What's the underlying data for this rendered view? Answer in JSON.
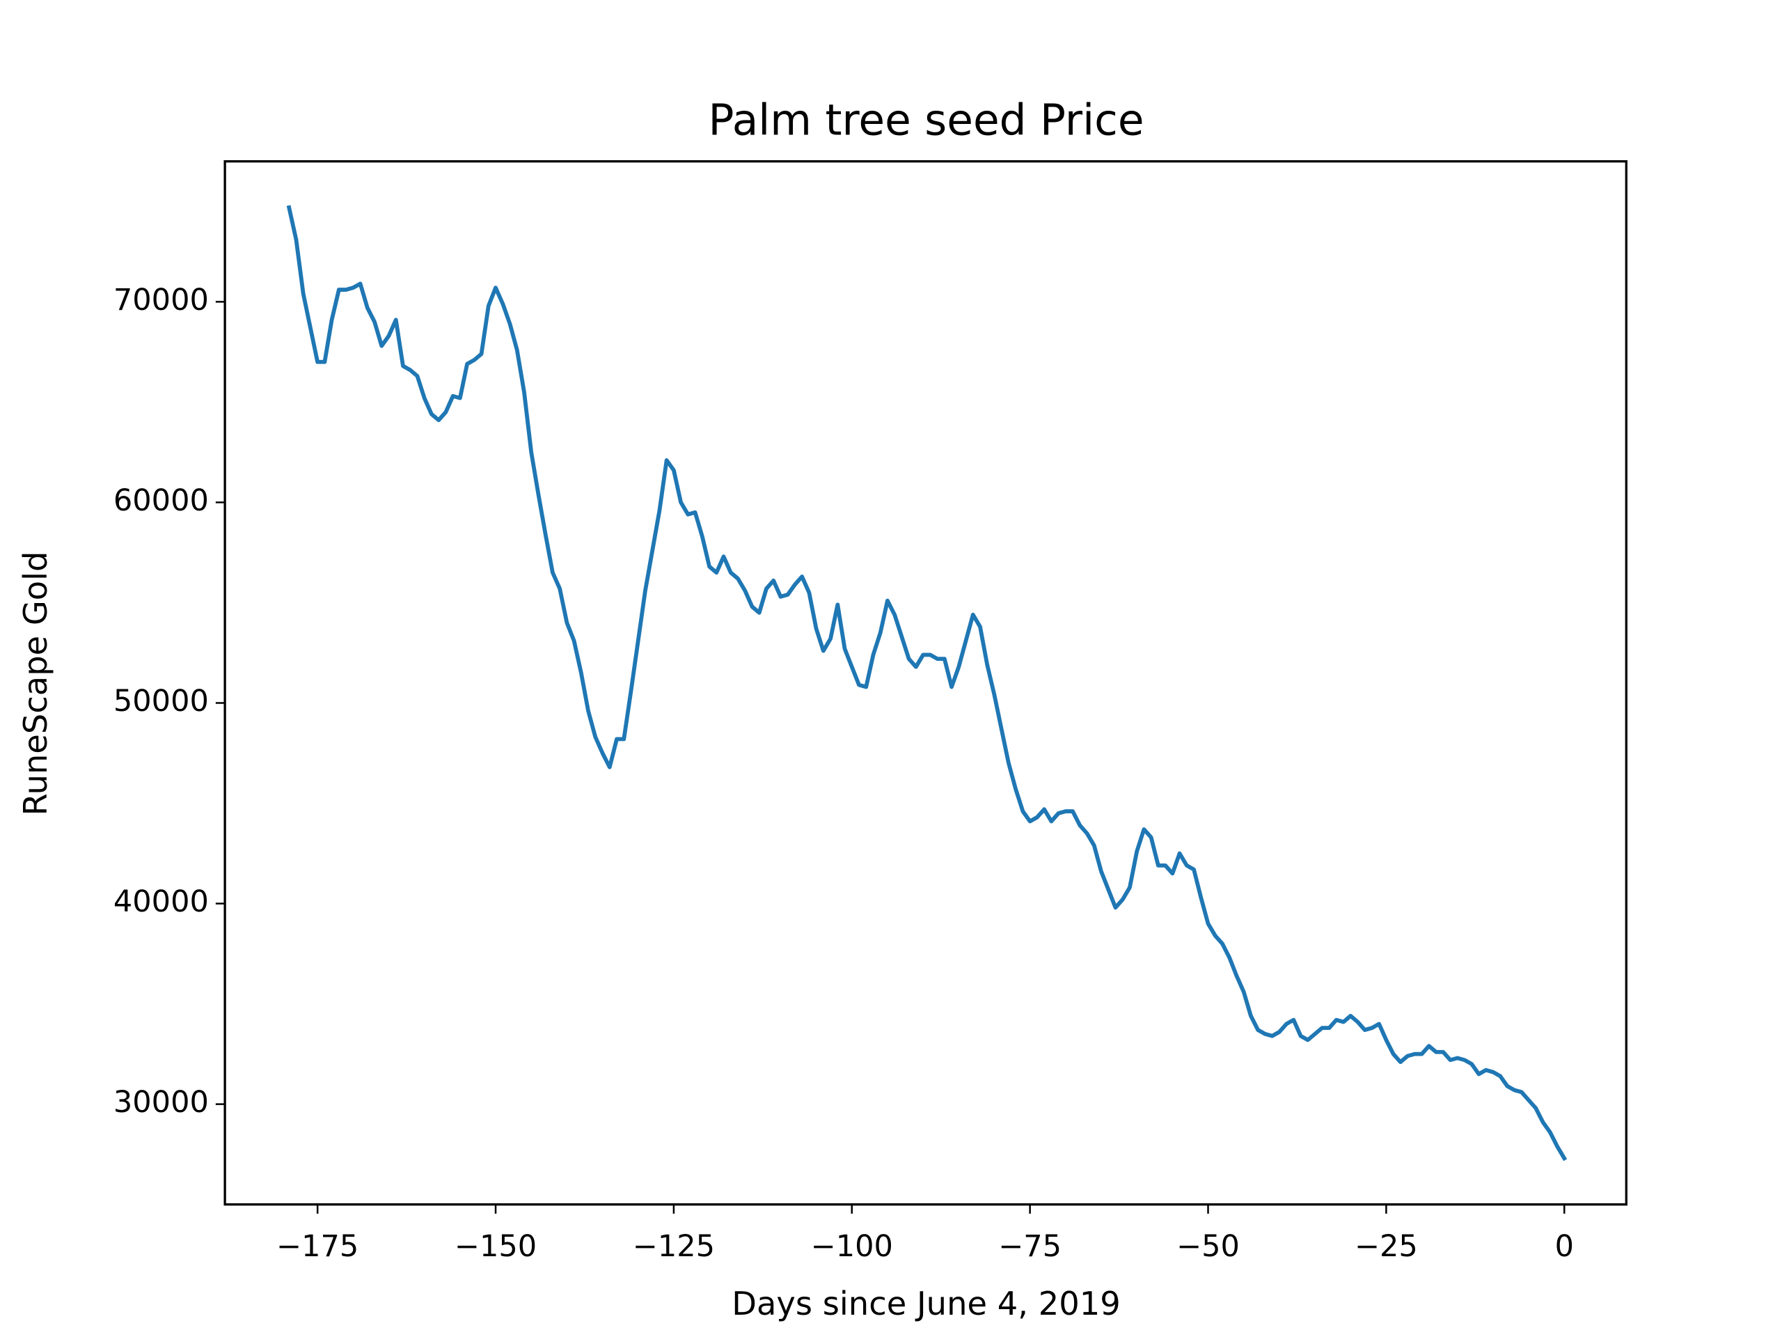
{
  "chart_data": {
    "type": "line",
    "title": "Palm tree seed Price",
    "xlabel": "Days since June 4, 2019",
    "ylabel": "RuneScape Gold",
    "color": "#1f77b4",
    "x": [
      -179,
      -178,
      -177,
      -176,
      -175,
      -174,
      -173,
      -172,
      -171,
      -170,
      -169,
      -168,
      -167,
      -166,
      -165,
      -164,
      -163,
      -162,
      -161,
      -160,
      -159,
      -158,
      -157,
      -156,
      -155,
      -154,
      -153,
      -152,
      -151,
      -150,
      -149,
      -148,
      -147,
      -146,
      -145,
      -144,
      -143,
      -142,
      -141,
      -140,
      -139,
      -138,
      -137,
      -136,
      -135,
      -134,
      -133,
      -132,
      -131,
      -130,
      -129,
      -128,
      -127,
      -126,
      -125,
      -124,
      -123,
      -122,
      -121,
      -120,
      -119,
      -118,
      -117,
      -116,
      -115,
      -114,
      -113,
      -112,
      -111,
      -110,
      -109,
      -108,
      -107,
      -106,
      -105,
      -104,
      -103,
      -102,
      -101,
      -100,
      -99,
      -98,
      -97,
      -96,
      -95,
      -94,
      -93,
      -92,
      -91,
      -90,
      -89,
      -88,
      -87,
      -86,
      -85,
      -84,
      -83,
      -82,
      -81,
      -80,
      -79,
      -78,
      -77,
      -76,
      -75,
      -74,
      -73,
      -72,
      -71,
      -70,
      -69,
      -68,
      -67,
      -66,
      -65,
      -64,
      -63,
      -62,
      -61,
      -60,
      -59,
      -58,
      -57,
      -56,
      -55,
      -54,
      -53,
      -52,
      -51,
      -50,
      -49,
      -48,
      -47,
      -46,
      -45,
      -44,
      -43,
      -42,
      -41,
      -40,
      -39,
      -38,
      -37,
      -36,
      -35,
      -34,
      -33,
      -32,
      -31,
      -30,
      -29,
      -28,
      -27,
      -26,
      -25,
      -24,
      -23,
      -22,
      -21,
      -20,
      -19,
      -18,
      -17,
      -16,
      -15,
      -14,
      -13,
      -12,
      -11,
      -10,
      -9,
      -8,
      -7,
      -6,
      -5,
      -4,
      -3,
      -2,
      -1,
      0
    ],
    "values": [
      74700,
      73100,
      70400,
      68700,
      67000,
      67000,
      69100,
      70600,
      70600,
      70700,
      70900,
      69700,
      69000,
      67800,
      68300,
      69100,
      66800,
      66600,
      66300,
      65200,
      64400,
      64100,
      64500,
      65300,
      65200,
      66900,
      67100,
      67400,
      69800,
      70700,
      69900,
      68900,
      67600,
      65500,
      62500,
      60400,
      58400,
      56500,
      55700,
      54000,
      53100,
      51500,
      49600,
      48300,
      47500,
      46800,
      48200,
      48200,
      50600,
      53100,
      55600,
      57600,
      59600,
      62100,
      61600,
      60000,
      59400,
      59500,
      58300,
      56800,
      56500,
      57300,
      56500,
      56200,
      55600,
      54800,
      54500,
      55700,
      56100,
      55300,
      55400,
      55900,
      56300,
      55500,
      53700,
      52600,
      53200,
      54900,
      52700,
      51800,
      50900,
      50800,
      52400,
      53500,
      55100,
      54400,
      53300,
      52200,
      51800,
      52400,
      52400,
      52200,
      52200,
      50800,
      51800,
      53100,
      54400,
      53800,
      51900,
      50400,
      48700,
      47000,
      45700,
      44600,
      44100,
      44300,
      44700,
      44100,
      44500,
      44600,
      44600,
      43900,
      43500,
      42900,
      41600,
      40700,
      39800,
      40200,
      40800,
      42600,
      43700,
      43300,
      41900,
      41900,
      41500,
      42500,
      41900,
      41700,
      40300,
      39000,
      38400,
      38000,
      37300,
      36400,
      35600,
      34400,
      33700,
      33500,
      33400,
      33600,
      34000,
      34200,
      33400,
      33200,
      33500,
      33800,
      33800,
      34200,
      34100,
      34400,
      34100,
      33700,
      33800,
      34000,
      33200,
      32500,
      32100,
      32400,
      32500,
      32500,
      32900,
      32600,
      32600,
      32200,
      32300,
      32200,
      32000,
      31500,
      31700,
      31600,
      31400,
      30900,
      30700,
      30600,
      30200,
      29800,
      29100,
      28600,
      27900,
      27300
    ],
    "xlim": [
      -188,
      8.7
    ],
    "ylim": [
      25000,
      77000
    ],
    "xticks": [
      {
        "value": -175,
        "label": "−175"
      },
      {
        "value": -150,
        "label": "−150"
      },
      {
        "value": -125,
        "label": "−125"
      },
      {
        "value": -100,
        "label": "−100"
      },
      {
        "value": -75,
        "label": "−75"
      },
      {
        "value": -50,
        "label": "−50"
      },
      {
        "value": -25,
        "label": "−25"
      },
      0
    ],
    "yticks": [
      30000,
      40000,
      50000,
      60000,
      70000
    ]
  }
}
